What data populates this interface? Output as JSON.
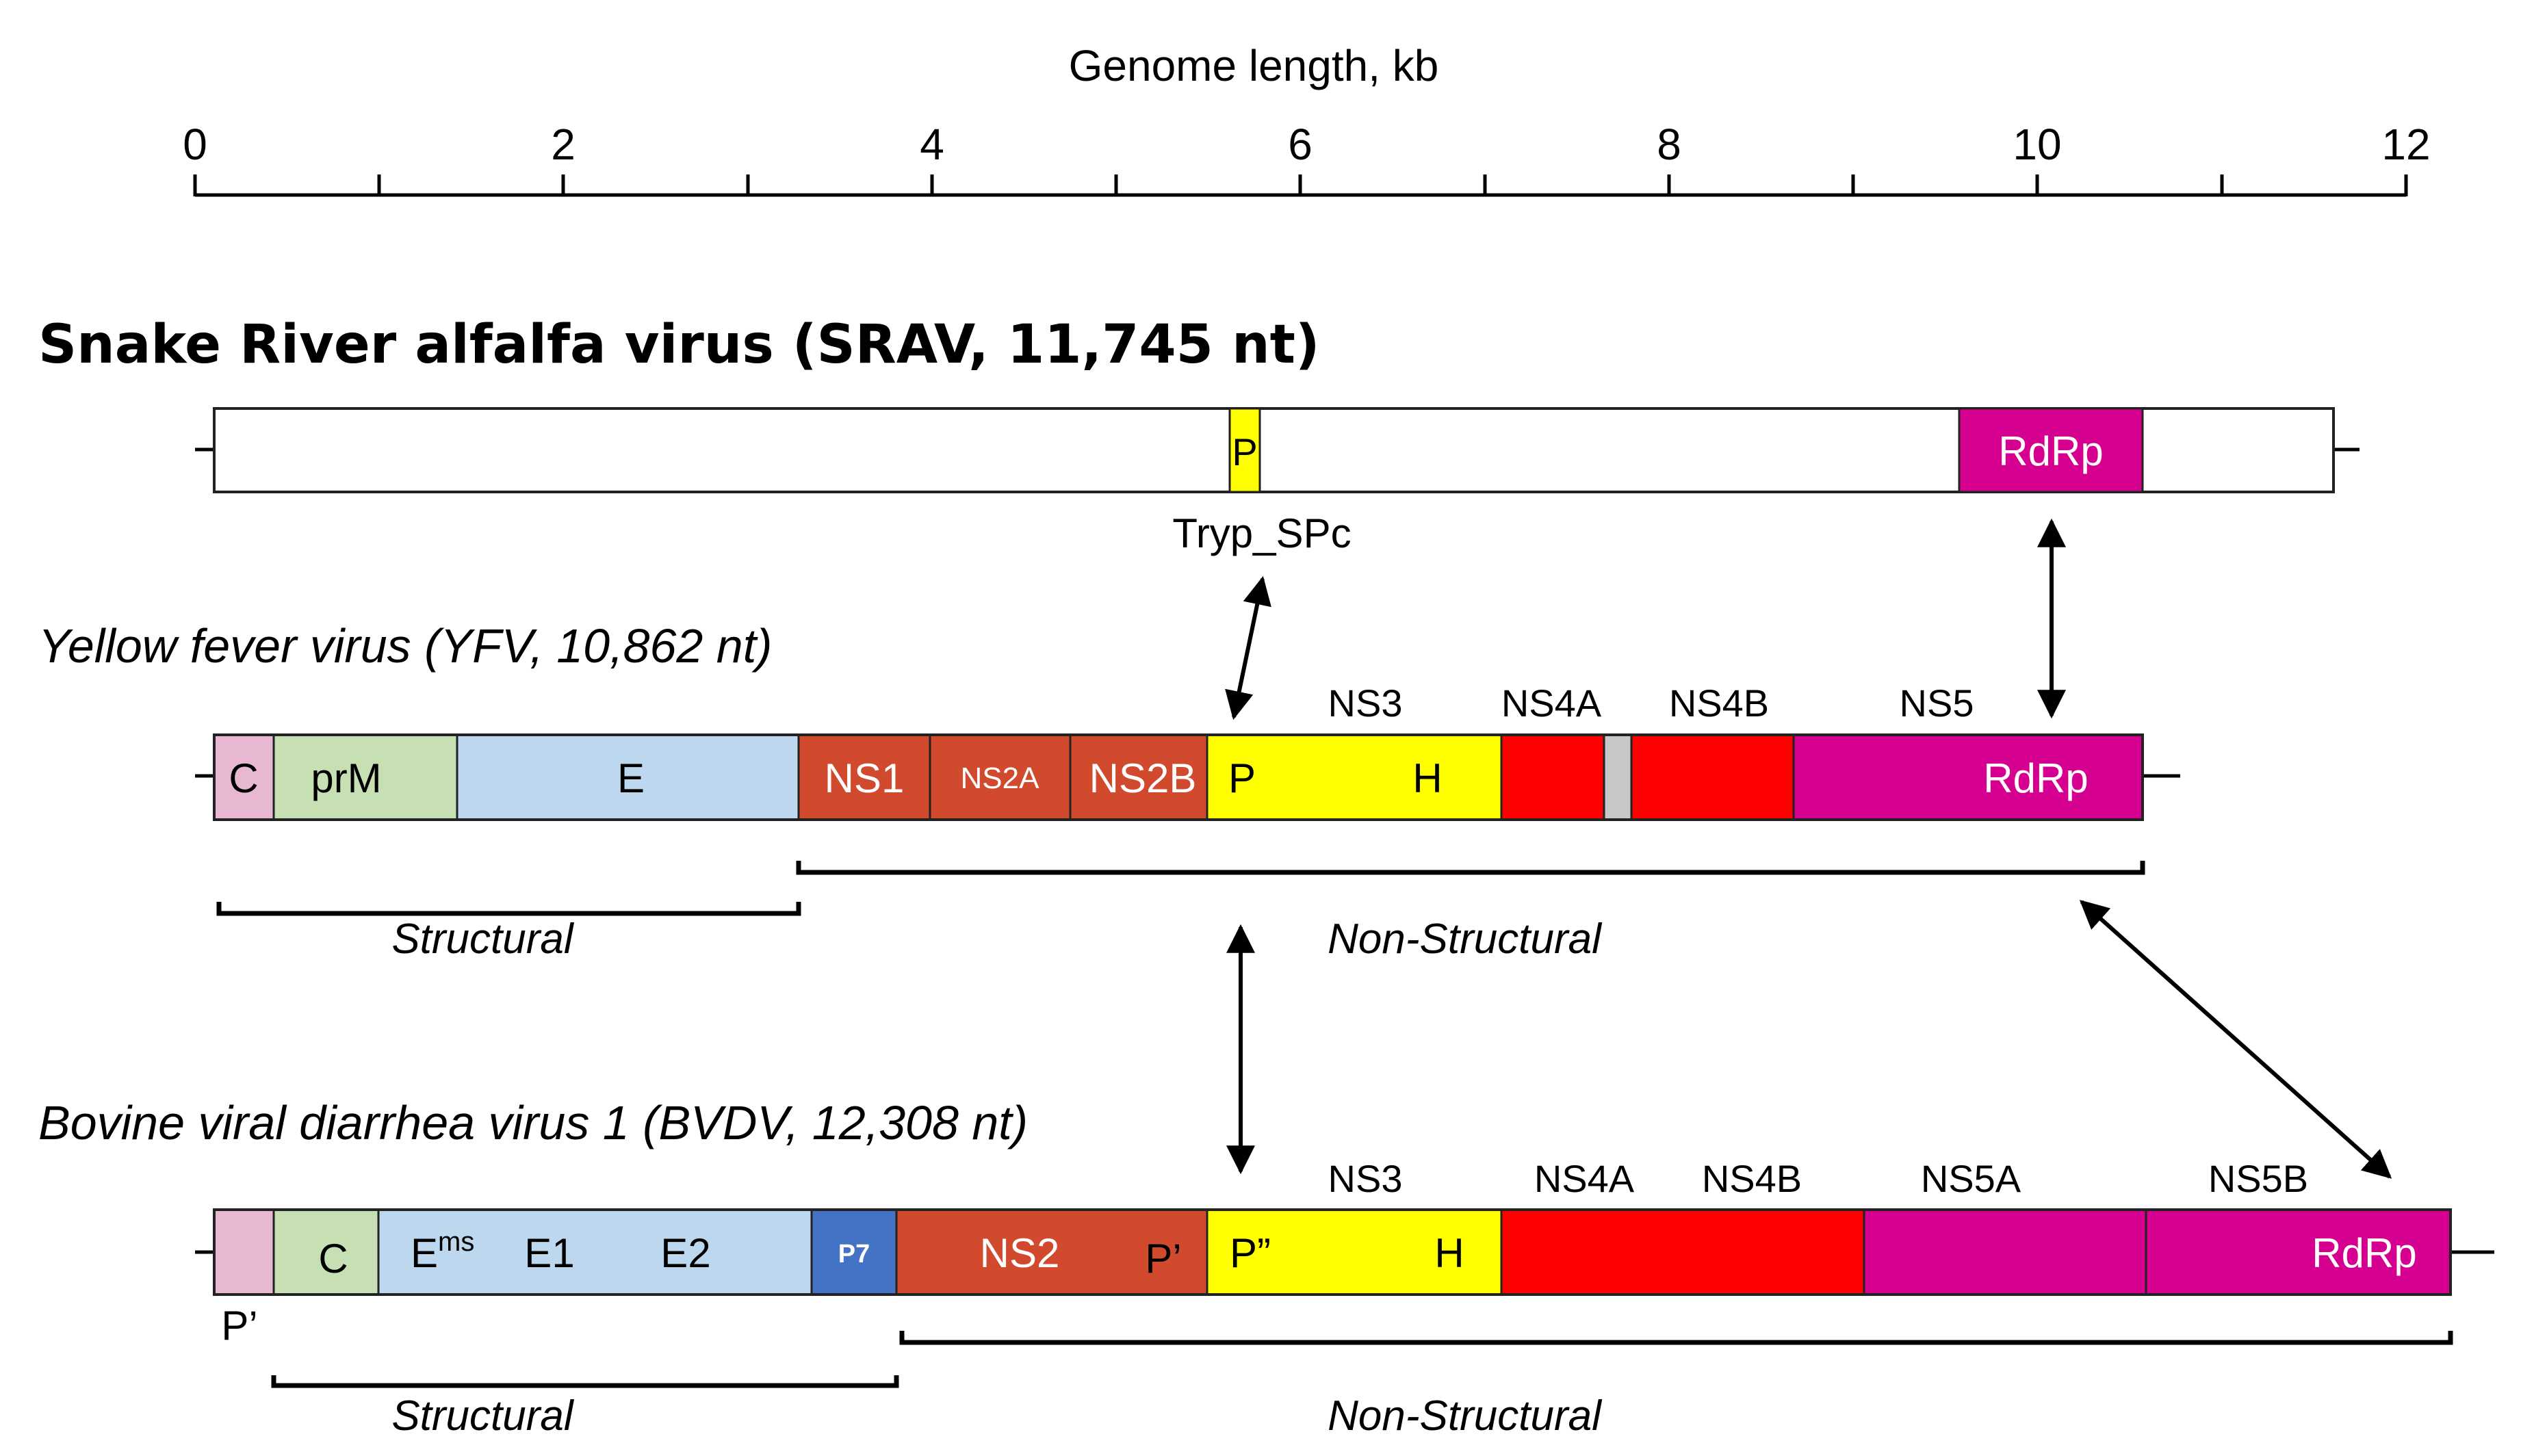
{
  "axis": {
    "title": "Genome length, kb",
    "ticks": [
      "0",
      "2",
      "4",
      "6",
      "8",
      "10",
      "12"
    ]
  },
  "srav": {
    "title": "Snake River alfalfa virus (SRAV, 11,745 nt)",
    "p_label": "P",
    "rdrp_label": "RdRp",
    "tryp_label": "Tryp_SPc"
  },
  "yfv": {
    "title": "Yellow fever virus (YFV, 10,862 nt)",
    "labels": {
      "c": "C",
      "prm": "prM",
      "e": "E",
      "ns1": "NS1",
      "ns2a": "NS2A",
      "ns2b": "NS2B",
      "p": "P",
      "h": "H",
      "rdrp": "RdRp",
      "ns3": "NS3",
      "ns4a": "NS4A",
      "ns4b": "NS4B",
      "ns5": "NS5"
    },
    "structural": "Structural",
    "nonstructural": "Non-Structural"
  },
  "bvdv": {
    "title": "Bovine viral diarrhea virus 1 (BVDV, 12,308 nt)",
    "labels": {
      "p_prime_left": "P’",
      "c": "C",
      "e_base": "E",
      "e_sup": "ms",
      "e1": "E1",
      "e2": "E2",
      "p7": "P7",
      "ns2": "NS2",
      "p_prime": "P’",
      "p_dprime": "P”",
      "h": "H",
      "rdrp": "RdRp",
      "ns3": "NS3",
      "ns4a": "NS4A",
      "ns4b": "NS4B",
      "ns5a": "NS5A",
      "ns5b": "NS5B"
    },
    "structural": "Structural",
    "nonstructural": "Non-Structural"
  },
  "colors": {
    "capsid_pink": "#e8b8d2",
    "prm_green": "#c6e0b4",
    "env_blue": "#bdd7ee",
    "ns_orange": "#d14a2e",
    "helicase_yellow": "#ffff00",
    "ns4_red": "#ff0000",
    "rdrp_magenta": "#d5008f",
    "p7_blue": "#4472c4",
    "gray": "#c8c8c8"
  }
}
